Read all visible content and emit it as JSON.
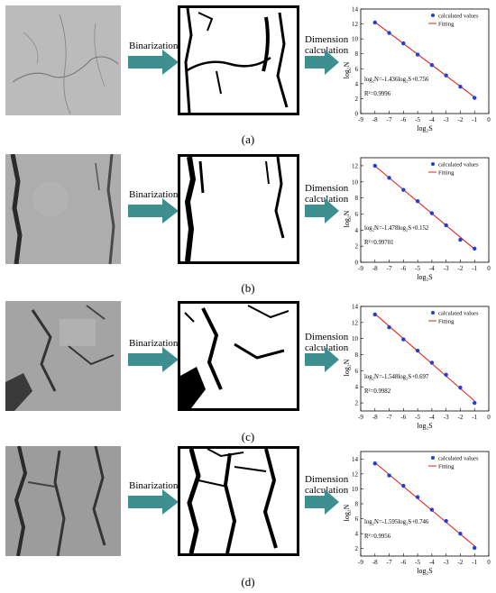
{
  "labels": {
    "binarization": "Binarization",
    "dimension_line1": "Dimension",
    "dimension_line2": "calculation"
  },
  "colors": {
    "arrow": "#3e8f8f",
    "points": "#1f3fd9",
    "fit": "#e02020"
  },
  "panels": [
    {
      "caption": "(a)",
      "photo_tone": "#bdbdbd"
    },
    {
      "caption": "(b)",
      "photo_tone": "#a8a8a8"
    },
    {
      "caption": "(c)",
      "photo_tone": "#a0a0a0"
    },
    {
      "caption": "(d)",
      "photo_tone": "#9a9a9a"
    }
  ],
  "chart_data": [
    {
      "type": "scatter",
      "xlabel": "log₂S",
      "ylabel": "log₂N",
      "xlim": [
        -9,
        0
      ],
      "ylim": [
        0,
        14
      ],
      "xticks": [
        -9,
        -8,
        -7,
        -6,
        -5,
        -4,
        -3,
        -2,
        -1,
        0
      ],
      "yticks": [
        0,
        2,
        4,
        6,
        8,
        10,
        12,
        14
      ],
      "legend": [
        "calculated values",
        "Fitting"
      ],
      "equation": "log₂N=-1.436log₂S+0.756",
      "r2": "R²=0.9996",
      "x": [
        -8,
        -7,
        -6,
        -5,
        -4,
        -3,
        -2,
        -1
      ],
      "y": [
        12.2,
        10.8,
        9.4,
        7.9,
        6.5,
        5.1,
        3.6,
        2.1
      ],
      "fit": {
        "slope": -1.436,
        "intercept": 0.756
      }
    },
    {
      "type": "scatter",
      "xlabel": "log₂S",
      "ylabel": "log₂N",
      "xlim": [
        -9,
        0
      ],
      "ylim": [
        0,
        13
      ],
      "xticks": [
        -9,
        -8,
        -7,
        -6,
        -5,
        -4,
        -3,
        -2,
        -1,
        0
      ],
      "yticks": [
        0,
        2,
        4,
        6,
        8,
        10,
        12
      ],
      "legend": [
        "calculated values",
        "Fitting"
      ],
      "equation": "log₂N=-1.478log₂S+0.152",
      "r2": "R²=0.99701",
      "x": [
        -8,
        -7,
        -6,
        -5,
        -4,
        -3,
        -2,
        -1
      ],
      "y": [
        12.0,
        10.5,
        9.0,
        7.6,
        6.1,
        4.6,
        2.8,
        1.7
      ],
      "fit": {
        "slope": -1.478,
        "intercept": 0.152
      }
    },
    {
      "type": "scatter",
      "xlabel": "log₂S",
      "ylabel": "log₂N",
      "xlim": [
        -9,
        0
      ],
      "ylim": [
        1,
        14
      ],
      "xticks": [
        -9,
        -8,
        -7,
        -6,
        -5,
        -4,
        -3,
        -2,
        -1,
        0
      ],
      "yticks": [
        2,
        4,
        6,
        8,
        10,
        12,
        14
      ],
      "legend": [
        "calculated values",
        "Fitting"
      ],
      "equation": "log₂N=-1.548log₂S+0.697",
      "r2": "R²=0.9982",
      "x": [
        -8,
        -7,
        -6,
        -5,
        -4,
        -3,
        -2,
        -1
      ],
      "y": [
        13.0,
        11.4,
        9.9,
        8.5,
        7.0,
        5.5,
        3.9,
        2.0
      ],
      "fit": {
        "slope": -1.548,
        "intercept": 0.697
      }
    },
    {
      "type": "scatter",
      "xlabel": "log₂S",
      "ylabel": "log₂N",
      "xlim": [
        -9,
        0
      ],
      "ylim": [
        1,
        15
      ],
      "xticks": [
        -9,
        -8,
        -7,
        -6,
        -5,
        -4,
        -3,
        -2,
        -1,
        0
      ],
      "yticks": [
        2,
        4,
        6,
        8,
        10,
        12,
        14
      ],
      "legend": [
        "calculated values",
        "Fitting"
      ],
      "equation": "log₂N=-1.595log₂S+0.746",
      "r2": "R²=0.9956",
      "x": [
        -8,
        -7,
        -6,
        -5,
        -4,
        -3,
        -2,
        -1
      ],
      "y": [
        13.4,
        11.8,
        10.4,
        8.9,
        7.2,
        5.7,
        4.0,
        2.1
      ],
      "fit": {
        "slope": -1.595,
        "intercept": 0.746
      }
    }
  ]
}
